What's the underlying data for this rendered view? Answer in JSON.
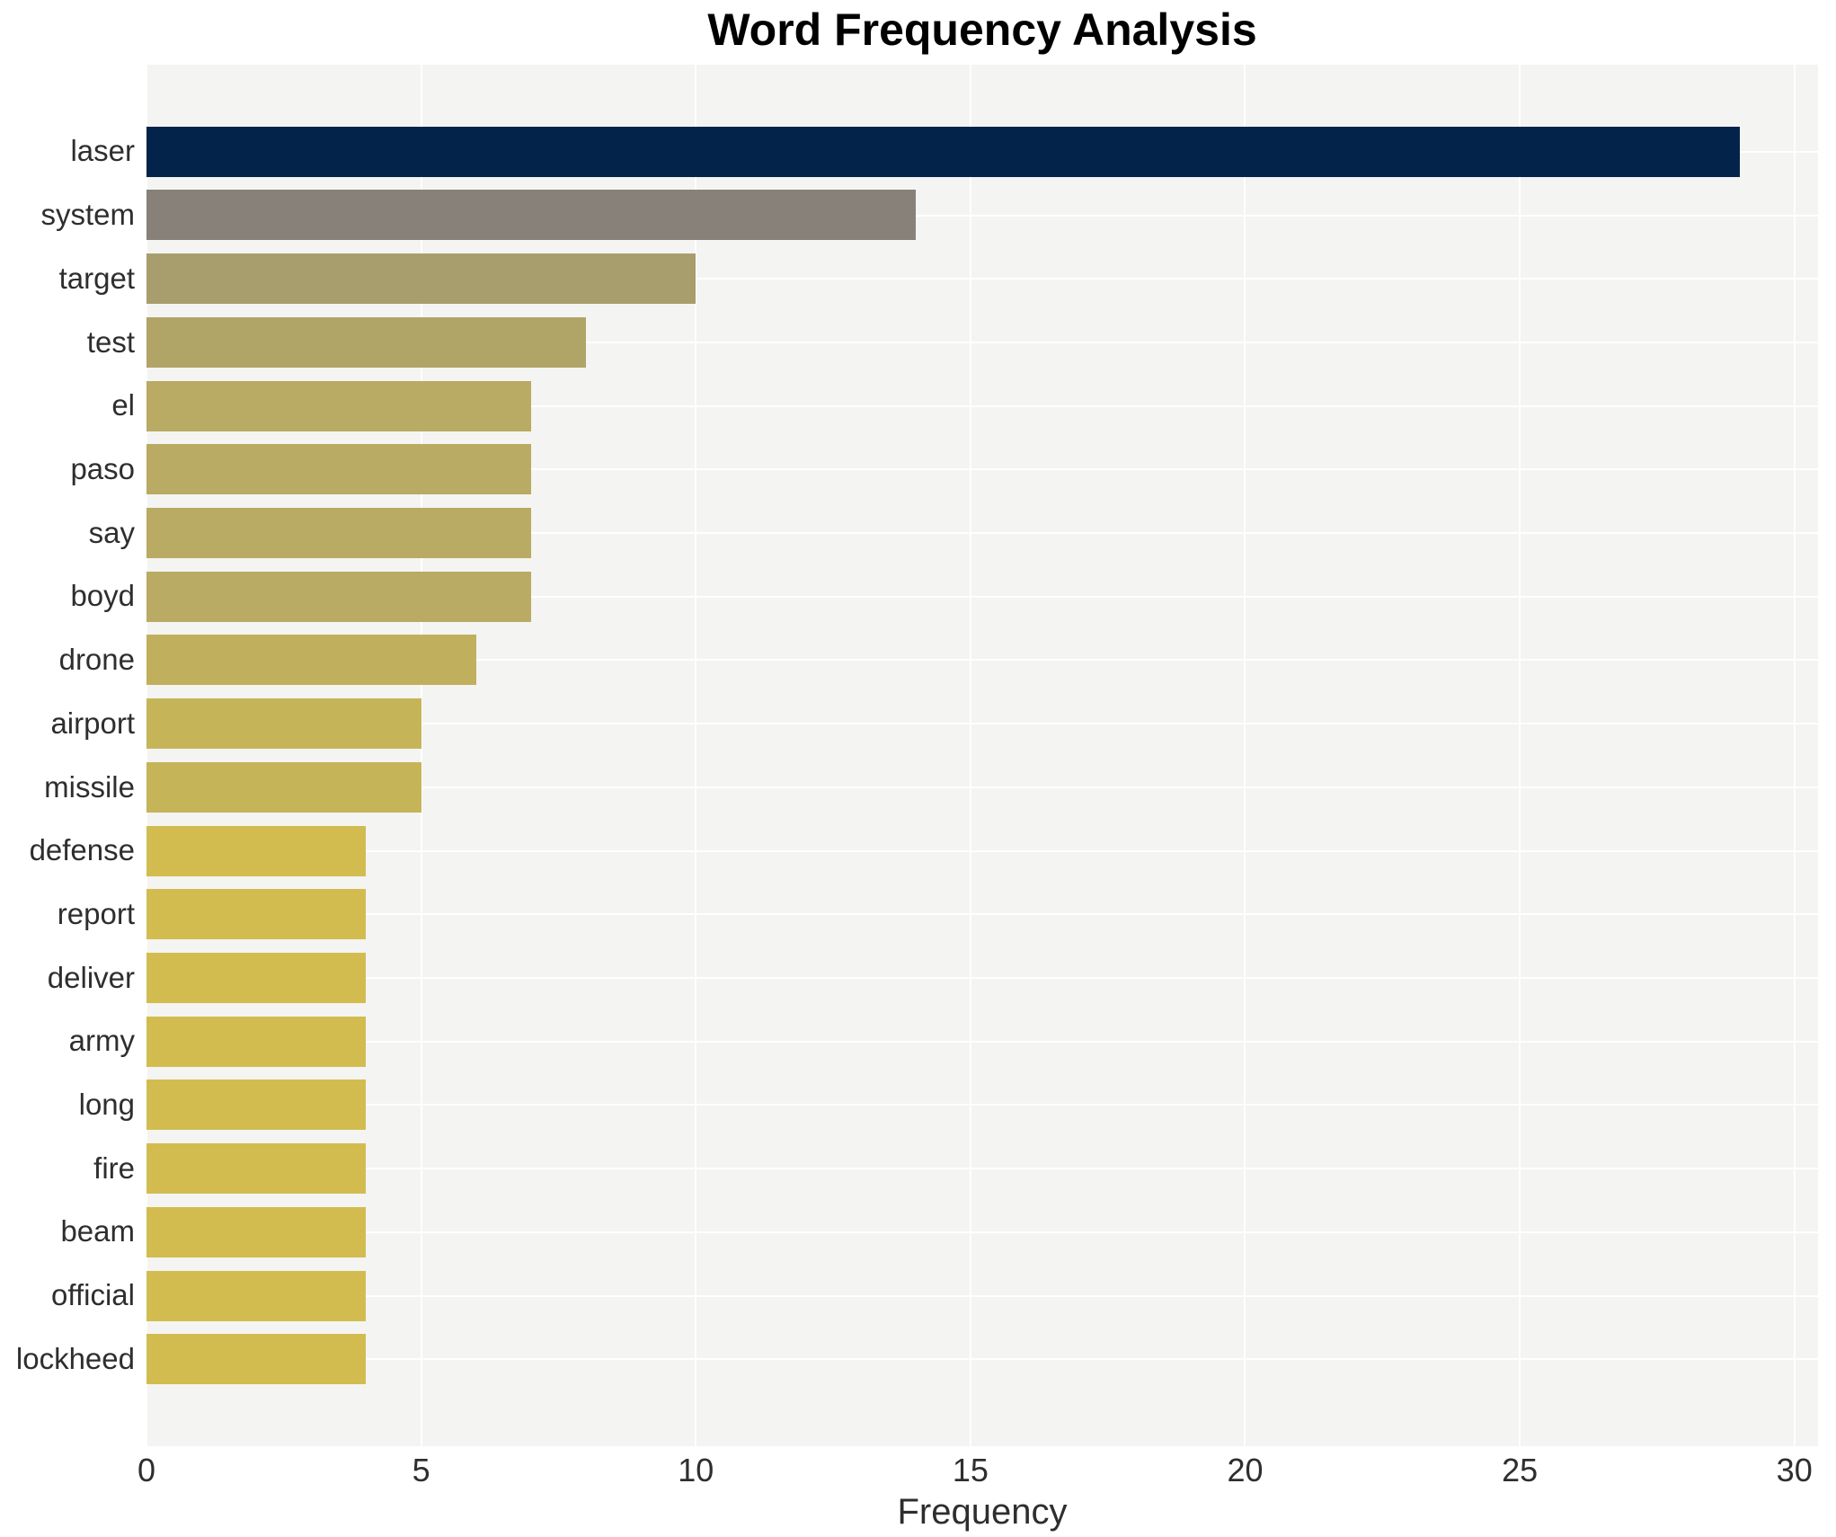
{
  "chart_data": {
    "type": "bar",
    "orientation": "horizontal",
    "title": "Word Frequency Analysis",
    "xlabel": "Frequency",
    "ylabel": "",
    "categories": [
      "laser",
      "system",
      "target",
      "test",
      "el",
      "paso",
      "say",
      "boyd",
      "drone",
      "airport",
      "missile",
      "defense",
      "report",
      "deliver",
      "army",
      "long",
      "fire",
      "beam",
      "official",
      "lockheed"
    ],
    "values": [
      29,
      14,
      10,
      8,
      7,
      7,
      7,
      7,
      6,
      5,
      5,
      4,
      4,
      4,
      4,
      4,
      4,
      4,
      4,
      4
    ],
    "bar_colors": [
      "#04234b",
      "#87817a",
      "#a89d6c",
      "#b1a467",
      "#b9aa64",
      "#b9aa64",
      "#b9aa64",
      "#b9aa64",
      "#c0b05e",
      "#c6b459",
      "#c6b459",
      "#d2bc50",
      "#d2bc50",
      "#d2bc50",
      "#d2bc50",
      "#d2bc50",
      "#d2bc50",
      "#d2bc50",
      "#d2bc50",
      "#d2bc50"
    ],
    "xlim": [
      0,
      30.43
    ],
    "xticks": [
      0,
      5,
      10,
      15,
      20,
      25,
      30
    ],
    "xtick_labels": [
      "0",
      "5",
      "10",
      "15",
      "20",
      "25",
      "30"
    ],
    "grid": true,
    "legend_position": "none",
    "plot_bg": "#f4f4f2",
    "grid_color": "#ffffff",
    "title_color": "#000000",
    "label_color": "#2e2e2e"
  }
}
